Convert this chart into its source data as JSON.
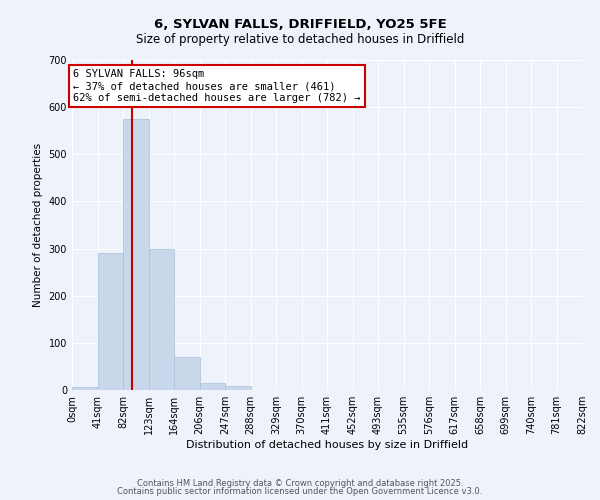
{
  "title": "6, SYLVAN FALLS, DRIFFIELD, YO25 5FE",
  "subtitle": "Size of property relative to detached houses in Driffield",
  "xlabel": "Distribution of detached houses by size in Driffield",
  "ylabel": "Number of detached properties",
  "bar_values": [
    7,
    290,
    575,
    300,
    70,
    14,
    8,
    0,
    0,
    0,
    0,
    0,
    0,
    0,
    0,
    0,
    0,
    0,
    0,
    0
  ],
  "bar_labels": [
    "0sqm",
    "41sqm",
    "82sqm",
    "123sqm",
    "164sqm",
    "206sqm",
    "247sqm",
    "288sqm",
    "329sqm",
    "370sqm",
    "411sqm",
    "452sqm",
    "493sqm",
    "535sqm",
    "576sqm",
    "617sqm",
    "658sqm",
    "699sqm",
    "740sqm",
    "781sqm",
    "822sqm"
  ],
  "bar_color": "#c8d8ea",
  "bar_edge_color": "#a8c0d8",
  "vline_x": 96,
  "vline_color": "#cc0000",
  "ylim": [
    0,
    700
  ],
  "yticks": [
    0,
    100,
    200,
    300,
    400,
    500,
    600,
    700
  ],
  "annotation_text": "6 SYLVAN FALLS: 96sqm\n← 37% of detached houses are smaller (461)\n62% of semi-detached houses are larger (782) →",
  "annotation_box_color": "#ffffff",
  "annotation_box_edge_color": "#cc0000",
  "footnote1": "Contains HM Land Registry data © Crown copyright and database right 2025.",
  "footnote2": "Contains public sector information licensed under the Open Government Licence v3.0.",
  "bg_color": "#eef2fb",
  "bin_width": 41,
  "grid_color": "#ffffff",
  "title_fontsize": 9.5,
  "subtitle_fontsize": 8.5,
  "xlabel_fontsize": 8,
  "ylabel_fontsize": 7.5,
  "tick_fontsize": 7,
  "annot_fontsize": 7.5,
  "footnote_fontsize": 6
}
